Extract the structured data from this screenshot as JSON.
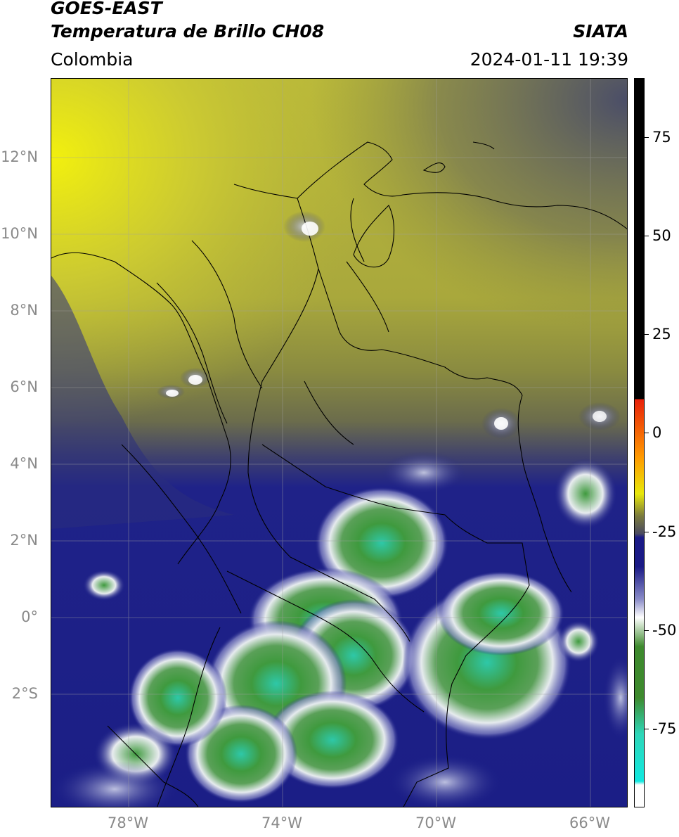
{
  "header": {
    "title_line1": "GOES-EAST",
    "title_line2": "Temperatura de Brillo CH08",
    "brand": "SIATA",
    "region": "Colombia",
    "datetime": "2024-01-11 19:39"
  },
  "axes": {
    "lat_labels": [
      "12°N",
      "10°N",
      "8°N",
      "6°N",
      "4°N",
      "2°N",
      "0°",
      "2°S"
    ],
    "lon_labels": [
      "78°W",
      "74°W",
      "70°W",
      "66°W"
    ]
  },
  "colorbar": {
    "tick_labels": [
      "75",
      "50",
      "25",
      "0",
      "-25",
      "-50",
      "-75"
    ],
    "range": [
      -95,
      90
    ],
    "colors": {
      "warm_black": "#000000",
      "red": "#e8200a",
      "orange": "#ff9a00",
      "yellow": "#e8e80a",
      "olive": "#7c7c3c",
      "dark_gray": "#4a4a60",
      "navy": "#1a1a86",
      "white": "#ffffff",
      "green": "#3e8a2e",
      "teal": "#2ed6b8",
      "cyan": "#10e8e0"
    }
  },
  "map": {
    "colors": {
      "yellow_field": "#c6c43a",
      "olive_field": "#888a42",
      "gray_field": "#5c5e6a",
      "navy_field": "#1c1f8a",
      "cloud_white": "#eef0f6",
      "cloud_green": "#4a9a48",
      "cloud_teal": "#34c6a4",
      "borders": "#000000",
      "grid": "#a0a0a0"
    }
  }
}
